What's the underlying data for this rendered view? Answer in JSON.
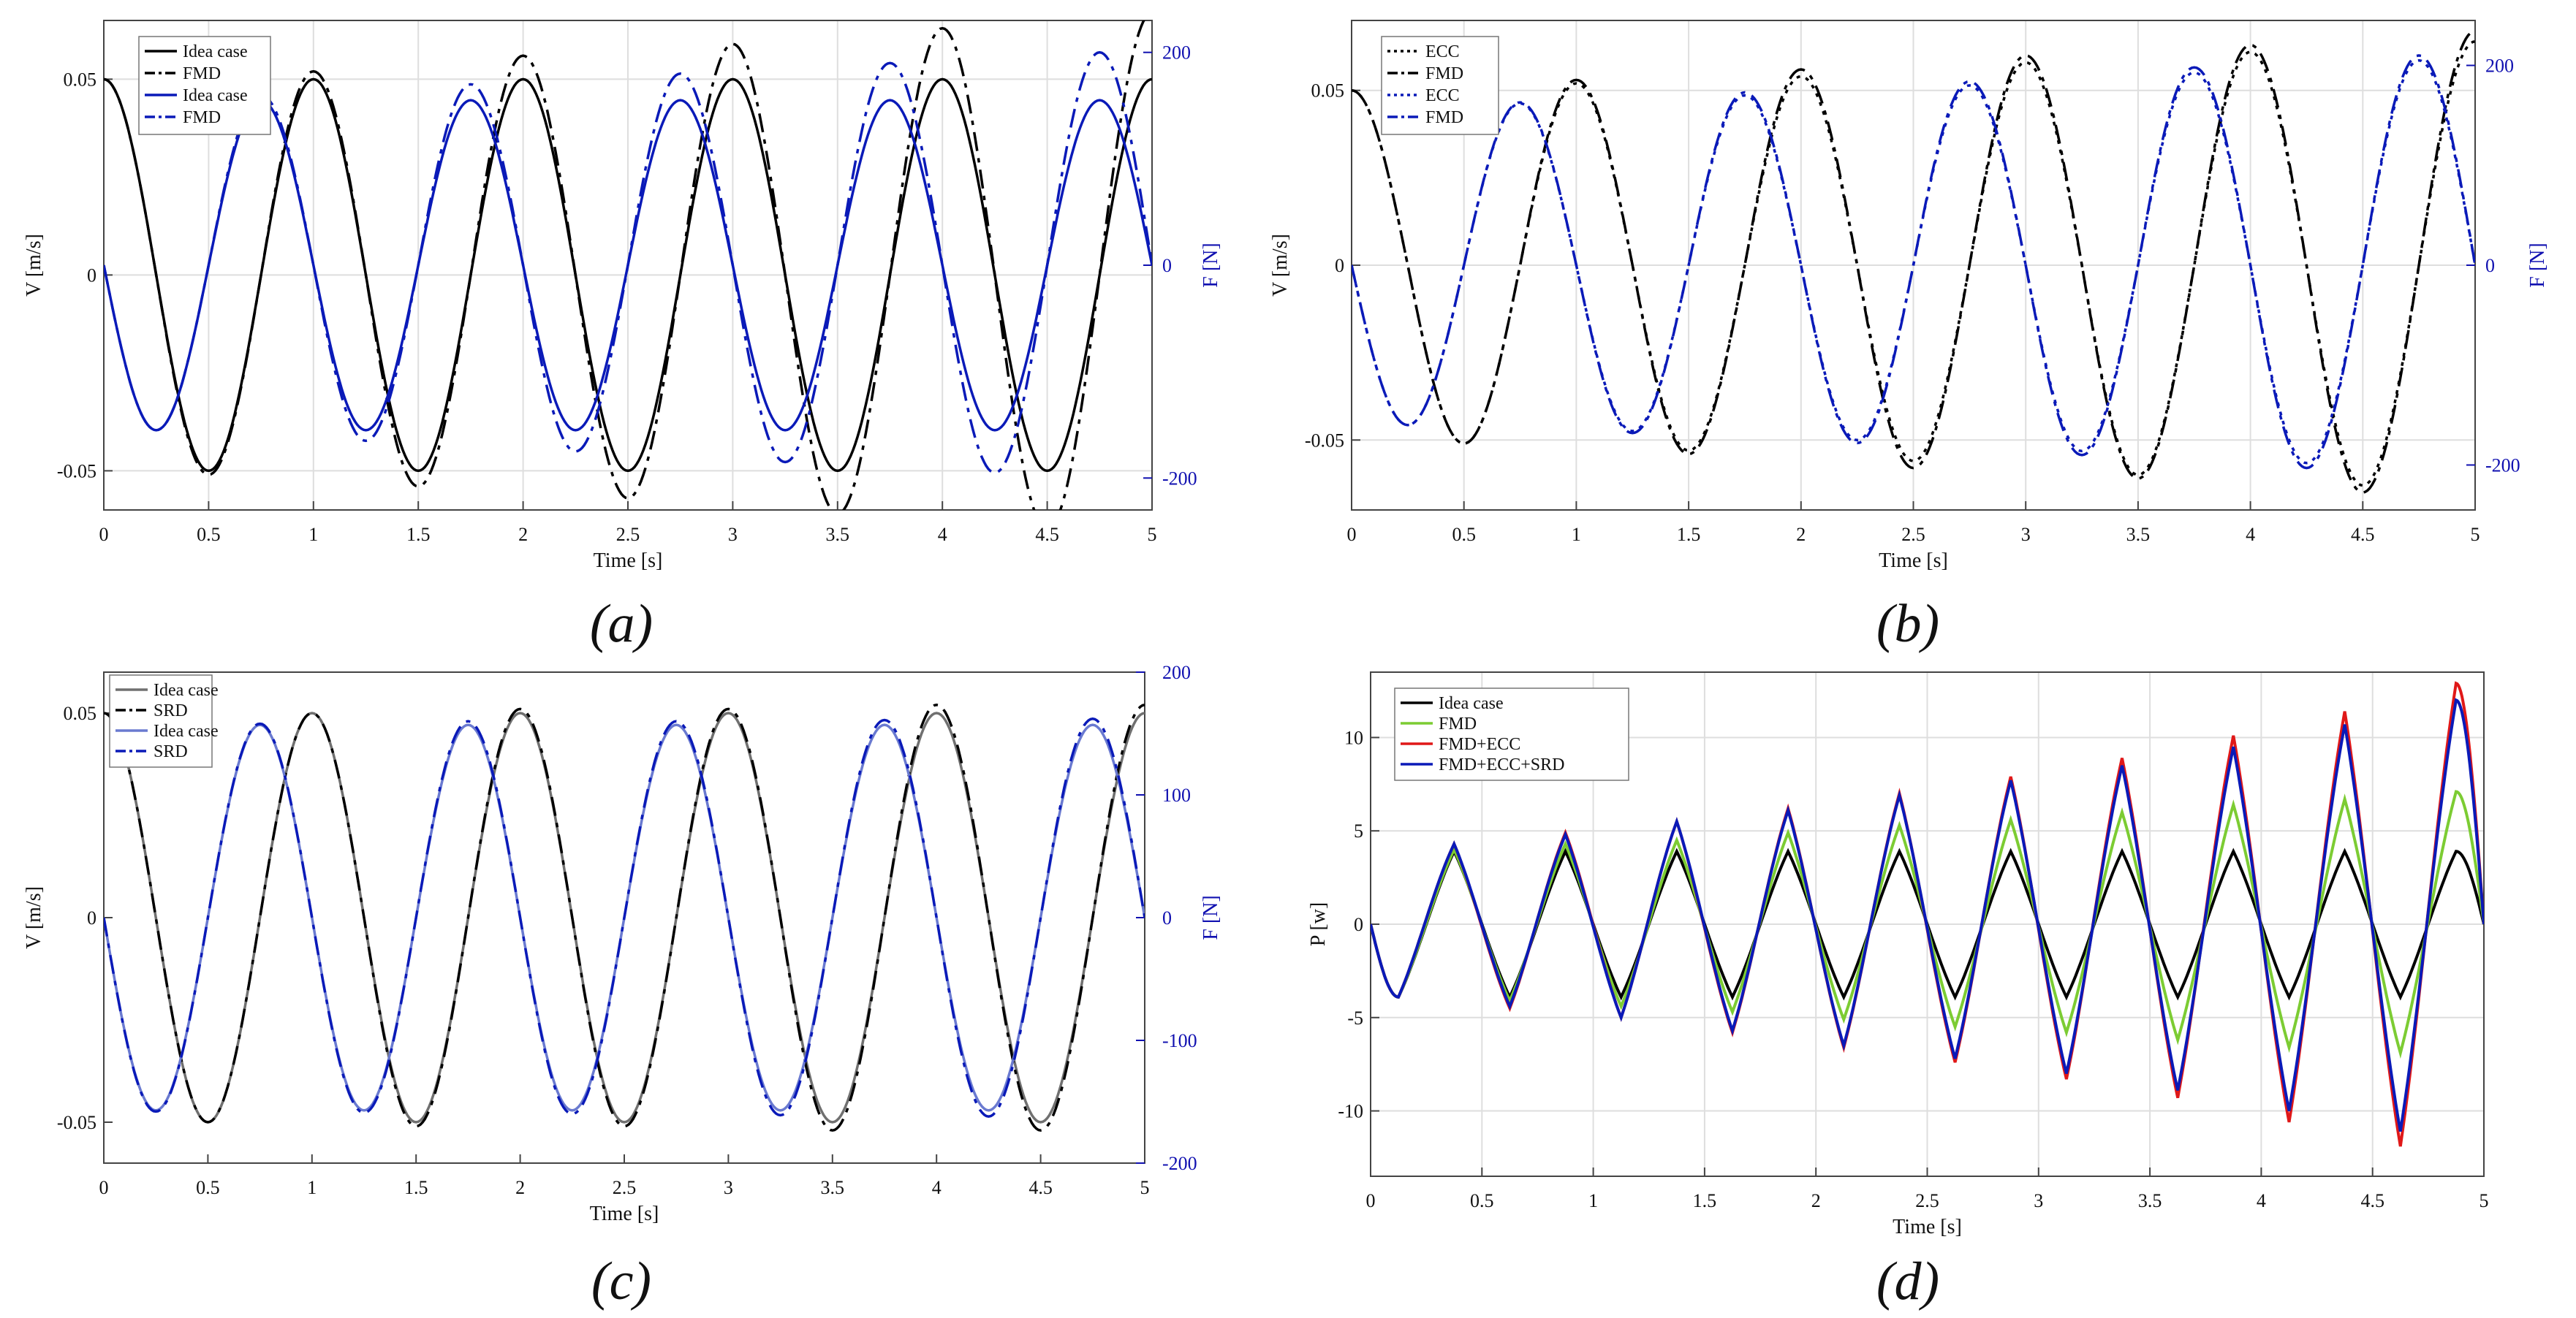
{
  "captions": [
    "(a)",
    "(b)",
    "(c)",
    "(d)"
  ],
  "colors": {
    "black": "#000000",
    "blue": "#0a1ab8",
    "gray": "#707070",
    "lightblue": "#6a7ad0",
    "green": "#7ccc33",
    "red": "#e01818",
    "axis_blue": "#1010b0"
  },
  "chart_data": [
    {
      "panel": "a",
      "type": "line",
      "xlabel": "Time [s]",
      "ylabel": "V [m/s]",
      "ylabel_right": "F [N]",
      "xlim": [
        0,
        5
      ],
      "ylim": [
        -0.06,
        0.065
      ],
      "ylim_right": [
        -230,
        230
      ],
      "xticks": [
        "0",
        "0.5",
        "1",
        "1.5",
        "2",
        "2.5",
        "3",
        "3.5",
        "4",
        "4.5",
        "5"
      ],
      "yticks": [
        "0.05",
        "0",
        "-0.05"
      ],
      "yticks_right": [
        "200",
        "0",
        "-200"
      ],
      "grid": true,
      "legend_position": "top-left",
      "series": [
        {
          "name": "Idea case",
          "axis": "left",
          "color": "#000000",
          "style": "solid",
          "x": [
            0,
            0.25,
            0.5,
            0.75,
            1,
            1.25,
            1.5,
            1.75,
            2,
            2.25,
            2.5,
            2.75,
            3,
            3.25,
            3.5,
            3.75,
            4,
            4.25,
            4.5,
            4.75,
            5
          ],
          "y": [
            0.05,
            0,
            -0.05,
            0,
            0.05,
            0,
            -0.05,
            0,
            0.05,
            0,
            -0.05,
            0,
            0.05,
            0,
            -0.05,
            0,
            0.05,
            0,
            -0.05,
            0,
            0.05
          ]
        },
        {
          "name": "FMD",
          "axis": "left",
          "color": "#000000",
          "style": "dashdot",
          "x": [
            0,
            0.25,
            0.5,
            0.75,
            1,
            1.25,
            1.5,
            1.75,
            2,
            2.25,
            2.5,
            2.75,
            3,
            3.25,
            3.5,
            3.75,
            4,
            4.25,
            4.5,
            4.75,
            5
          ],
          "y": [
            0.05,
            0,
            -0.051,
            0,
            0.052,
            0,
            -0.054,
            0,
            0.056,
            0,
            -0.057,
            0,
            0.059,
            0,
            -0.061,
            0,
            0.063,
            0,
            -0.065,
            0,
            0.067
          ]
        },
        {
          "name": "Idea case",
          "axis": "right",
          "color": "#0a1ab8",
          "style": "solid",
          "x": [
            0,
            0.25,
            0.5,
            0.75,
            1,
            1.25,
            1.5,
            1.75,
            2,
            2.25,
            2.5,
            2.75,
            3,
            3.25,
            3.5,
            3.75,
            4,
            4.25,
            4.5,
            4.75,
            5
          ],
          "y": [
            0,
            -155,
            0,
            155,
            0,
            -155,
            0,
            155,
            0,
            -155,
            0,
            155,
            0,
            -155,
            0,
            155,
            0,
            -155,
            0,
            155,
            0
          ]
        },
        {
          "name": "FMD",
          "axis": "right",
          "color": "#0a1ab8",
          "style": "dashdot",
          "x": [
            0,
            0.25,
            0.5,
            0.75,
            1,
            1.25,
            1.5,
            1.75,
            2,
            2.25,
            2.5,
            2.75,
            3,
            3.25,
            3.5,
            3.75,
            4,
            4.25,
            4.5,
            4.75,
            5
          ],
          "y": [
            0,
            -155,
            0,
            160,
            0,
            -165,
            0,
            170,
            0,
            -175,
            0,
            180,
            0,
            -185,
            0,
            190,
            0,
            -195,
            0,
            200,
            0
          ]
        }
      ]
    },
    {
      "panel": "b",
      "type": "line",
      "xlabel": "Time [s]",
      "ylabel": "V [m/s]",
      "ylabel_right": "F [N]",
      "xlim": [
        0,
        5
      ],
      "ylim": [
        -0.07,
        0.07
      ],
      "ylim_right": [
        -245,
        245
      ],
      "xticks": [
        "0",
        "0.5",
        "1",
        "1.5",
        "2",
        "2.5",
        "3",
        "3.5",
        "4",
        "4.5",
        "5"
      ],
      "yticks": [
        "0.05",
        "0",
        "-0.05"
      ],
      "yticks_right": [
        "200",
        "0",
        "-200"
      ],
      "grid": true,
      "legend_position": "top-left",
      "series": [
        {
          "name": "ECC",
          "axis": "left",
          "color": "#000000",
          "style": "dotted",
          "x": [
            0,
            0.25,
            0.5,
            0.75,
            1,
            1.25,
            1.5,
            1.75,
            2,
            2.25,
            2.5,
            2.75,
            3,
            3.25,
            3.5,
            3.75,
            4,
            4.25,
            4.5,
            4.75,
            5
          ],
          "y": [
            0.05,
            0,
            -0.051,
            0,
            0.052,
            0,
            -0.053,
            0,
            0.054,
            0,
            -0.056,
            0,
            0.058,
            0,
            -0.06,
            0,
            0.061,
            0,
            -0.063,
            0,
            0.064
          ]
        },
        {
          "name": "FMD",
          "axis": "left",
          "color": "#000000",
          "style": "dashdot",
          "x": [
            0,
            0.25,
            0.5,
            0.75,
            1,
            1.25,
            1.5,
            1.75,
            2,
            2.25,
            2.5,
            2.75,
            3,
            3.25,
            3.5,
            3.75,
            4,
            4.25,
            4.5,
            4.75,
            5
          ],
          "y": [
            0.05,
            0,
            -0.051,
            0,
            0.053,
            0,
            -0.054,
            0,
            0.056,
            0,
            -0.058,
            0,
            0.06,
            0,
            -0.061,
            0,
            0.063,
            0,
            -0.065,
            0,
            0.067
          ]
        },
        {
          "name": "ECC",
          "axis": "right",
          "color": "#0a1ab8",
          "style": "dotted",
          "x": [
            0,
            0.25,
            0.5,
            0.75,
            1,
            1.25,
            1.5,
            1.75,
            2,
            2.25,
            2.5,
            2.75,
            3,
            3.25,
            3.5,
            3.75,
            4,
            4.25,
            4.5,
            4.75,
            5
          ],
          "y": [
            0,
            -160,
            0,
            162,
            0,
            -166,
            0,
            170,
            0,
            -175,
            0,
            180,
            0,
            -186,
            0,
            193,
            0,
            -198,
            0,
            205,
            0
          ]
        },
        {
          "name": "FMD",
          "axis": "right",
          "color": "#0a1ab8",
          "style": "dashdot",
          "x": [
            0,
            0.25,
            0.5,
            0.75,
            1,
            1.25,
            1.5,
            1.75,
            2,
            2.25,
            2.5,
            2.75,
            3,
            3.25,
            3.5,
            3.75,
            4,
            4.25,
            4.5,
            4.75,
            5
          ],
          "y": [
            0,
            -160,
            0,
            163,
            0,
            -168,
            0,
            173,
            0,
            -178,
            0,
            184,
            0,
            -190,
            0,
            198,
            0,
            -203,
            0,
            210,
            0
          ]
        }
      ]
    },
    {
      "panel": "c",
      "type": "line",
      "xlabel": "Time [s]",
      "ylabel": "V [m/s]",
      "ylabel_right": "F [N]",
      "xlim": [
        0,
        5
      ],
      "ylim": [
        -0.06,
        0.06
      ],
      "ylim_right": [
        -200,
        200
      ],
      "xticks": [
        "0",
        "0.5",
        "1",
        "1.5",
        "2",
        "2.5",
        "3",
        "3.5",
        "4",
        "4.5",
        "5"
      ],
      "yticks": [
        "0.05",
        "0",
        "-0.05"
      ],
      "yticks_right": [
        "200",
        "100",
        "0",
        "-100",
        "-200"
      ],
      "grid": false,
      "legend_position": "top-left",
      "series": [
        {
          "name": "Idea case",
          "axis": "left",
          "color": "#707070",
          "style": "solid",
          "x": [
            0,
            0.25,
            0.5,
            0.75,
            1,
            1.25,
            1.5,
            1.75,
            2,
            2.25,
            2.5,
            2.75,
            3,
            3.25,
            3.5,
            3.75,
            4,
            4.25,
            4.5,
            4.75,
            5
          ],
          "y": [
            0.05,
            0,
            -0.05,
            0,
            0.05,
            0,
            -0.05,
            0,
            0.05,
            0,
            -0.05,
            0,
            0.05,
            0,
            -0.05,
            0,
            0.05,
            0,
            -0.05,
            0,
            0.05
          ]
        },
        {
          "name": "SRD",
          "axis": "left",
          "color": "#000000",
          "style": "dashdot",
          "x": [
            0,
            0.25,
            0.5,
            0.75,
            1,
            1.25,
            1.5,
            1.75,
            2,
            2.25,
            2.5,
            2.75,
            3,
            3.25,
            3.5,
            3.75,
            4,
            4.25,
            4.5,
            4.75,
            5
          ],
          "y": [
            0.05,
            0,
            -0.05,
            0,
            0.05,
            0,
            -0.051,
            0,
            0.051,
            0,
            -0.051,
            0,
            0.051,
            0,
            -0.052,
            0,
            0.052,
            0,
            -0.052,
            0,
            0.052
          ]
        },
        {
          "name": "Idea case",
          "axis": "right",
          "color": "#6a7ad0",
          "style": "solid",
          "x": [
            0,
            0.25,
            0.5,
            0.75,
            1,
            1.25,
            1.5,
            1.75,
            2,
            2.25,
            2.5,
            2.75,
            3,
            3.25,
            3.5,
            3.75,
            4,
            4.25,
            4.5,
            4.75,
            5
          ],
          "y": [
            0,
            -157,
            0,
            157,
            0,
            -157,
            0,
            157,
            0,
            -157,
            0,
            157,
            0,
            -157,
            0,
            157,
            0,
            -157,
            0,
            157,
            0
          ]
        },
        {
          "name": "SRD",
          "axis": "right",
          "color": "#0a1ab8",
          "style": "dashdot",
          "x": [
            0,
            0.25,
            0.5,
            0.75,
            1,
            1.25,
            1.5,
            1.75,
            2,
            2.25,
            2.5,
            2.75,
            3,
            3.25,
            3.5,
            3.75,
            4,
            4.25,
            4.5,
            4.75,
            5
          ],
          "y": [
            0,
            -158,
            0,
            158,
            0,
            -159,
            0,
            160,
            0,
            -160,
            0,
            160,
            0,
            -161,
            0,
            161,
            0,
            -162,
            0,
            162,
            0
          ]
        }
      ]
    },
    {
      "panel": "d",
      "type": "line",
      "xlabel": "Time [s]",
      "ylabel": "P [w]",
      "xlim": [
        0,
        5
      ],
      "ylim": [
        -13.5,
        13.5
      ],
      "xticks": [
        "0",
        "0.5",
        "1",
        "1.5",
        "2",
        "2.5",
        "3",
        "3.5",
        "4",
        "4.5",
        "5"
      ],
      "yticks": [
        "10",
        "5",
        "0",
        "-5",
        "-10"
      ],
      "grid": true,
      "legend_position": "top-left",
      "series": [
        {
          "name": "Idea case",
          "color": "#000000",
          "style": "solid",
          "x": [
            0,
            0.125,
            0.375,
            0.625,
            0.875,
            1.125,
            1.375,
            1.625,
            1.875,
            2.125,
            2.375,
            2.625,
            2.875,
            3.125,
            3.375,
            3.625,
            3.875,
            4.125,
            4.375,
            4.625,
            4.875,
            5
          ],
          "y": [
            0,
            -3.9,
            3.9,
            -3.9,
            3.9,
            -3.9,
            3.9,
            -3.9,
            3.9,
            -3.9,
            3.9,
            -3.9,
            3.9,
            -3.9,
            3.9,
            -3.9,
            3.9,
            -3.9,
            3.9,
            -3.9,
            3.9,
            0
          ]
        },
        {
          "name": "FMD",
          "color": "#7ccc33",
          "style": "solid",
          "x": [
            0,
            0.125,
            0.375,
            0.625,
            0.875,
            1.125,
            1.375,
            1.625,
            1.875,
            2.125,
            2.375,
            2.625,
            2.875,
            3.125,
            3.375,
            3.625,
            3.875,
            4.125,
            4.375,
            4.625,
            4.875,
            5
          ],
          "y": [
            0,
            -3.9,
            4,
            -4.1,
            4.3,
            -4.4,
            4.5,
            -4.7,
            4.9,
            -5.1,
            5.3,
            -5.5,
            5.6,
            -5.8,
            6.0,
            -6.2,
            6.4,
            -6.6,
            6.7,
            -6.9,
            7.1,
            0
          ]
        },
        {
          "name": "FMD+ECC",
          "color": "#e01818",
          "style": "solid",
          "x": [
            0,
            0.125,
            0.375,
            0.625,
            0.875,
            1.125,
            1.375,
            1.625,
            1.875,
            2.125,
            2.375,
            2.625,
            2.875,
            3.125,
            3.375,
            3.625,
            3.875,
            4.125,
            4.375,
            4.625,
            4.875,
            5
          ],
          "y": [
            0,
            -3.9,
            4.3,
            -4.5,
            4.9,
            -5.0,
            5.5,
            -5.8,
            6.2,
            -6.6,
            7.0,
            -7.4,
            7.9,
            -8.3,
            8.9,
            -9.3,
            10.1,
            -10.6,
            11.4,
            -11.9,
            12.9,
            0
          ]
        },
        {
          "name": "FMD+ECC+SRD",
          "color": "#0a1ab8",
          "style": "solid",
          "x": [
            0,
            0.125,
            0.375,
            0.625,
            0.875,
            1.125,
            1.375,
            1.625,
            1.875,
            2.125,
            2.375,
            2.625,
            2.875,
            3.125,
            3.375,
            3.625,
            3.875,
            4.125,
            4.375,
            4.625,
            4.875,
            5
          ],
          "y": [
            0,
            -3.9,
            4.3,
            -4.4,
            4.8,
            -5.0,
            5.5,
            -5.7,
            6.1,
            -6.5,
            6.9,
            -7.2,
            7.7,
            -8.0,
            8.5,
            -8.9,
            9.5,
            -10.0,
            10.7,
            -11.1,
            12.0,
            0
          ]
        }
      ]
    }
  ]
}
